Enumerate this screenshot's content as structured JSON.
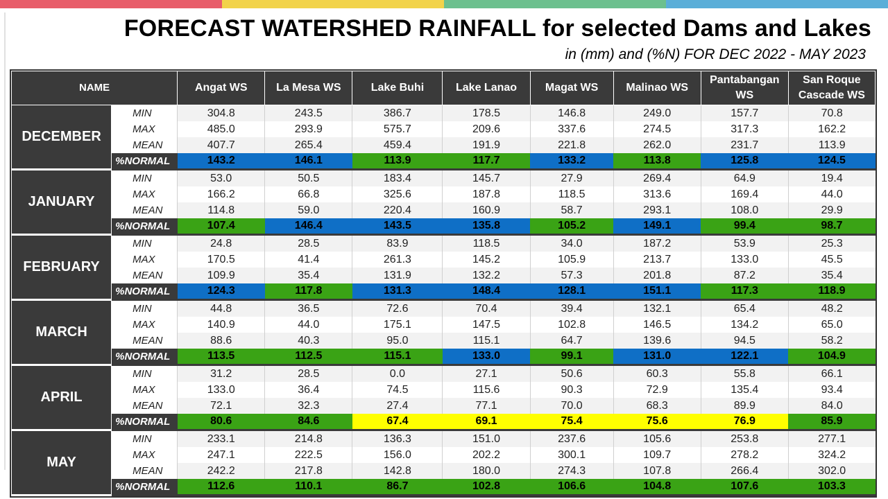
{
  "title": "FORECAST WATERSHED RAINFALL  for selected Dams and Lakes",
  "subtitle": "in (mm) and (%N) FOR DEC 2022 - MAY 2023",
  "colors": {
    "top_bar": [
      "#e85d6a",
      "#f2d34a",
      "#6cc08e",
      "#5aaed8"
    ],
    "header_bg": "#3a3a3a",
    "normal_green": "#3aa315",
    "above_blue": "#0f6fc6",
    "below_yellow": "#ffff00"
  },
  "legend_color_keys": {
    "G": "normal_green",
    "B": "above_blue",
    "Y": "below_yellow"
  },
  "chart_data": {
    "type": "table",
    "name_header": "NAME",
    "columns": [
      "Angat WS",
      "La Mesa WS",
      "Lake Buhi",
      "Lake Lanao",
      "Magat WS",
      "Malinao WS",
      "Pantabangan WS",
      "San Roque Cascade WS"
    ],
    "metric_labels": [
      "MIN",
      "MAX",
      "MEAN",
      "%NORMAL"
    ],
    "months": [
      {
        "name": "DECEMBER",
        "min": [
          "304.8",
          "243.5",
          "386.7",
          "178.5",
          "146.8",
          "249.0",
          "157.7",
          "70.8"
        ],
        "max": [
          "485.0",
          "293.9",
          "575.7",
          "209.6",
          "337.6",
          "274.5",
          "317.3",
          "162.2"
        ],
        "mean": [
          "407.7",
          "265.4",
          "459.4",
          "191.9",
          "221.8",
          "262.0",
          "231.7",
          "113.9"
        ],
        "normal": [
          "143.2",
          "146.1",
          "113.9",
          "117.7",
          "133.2",
          "113.8",
          "125.8",
          "124.5"
        ],
        "normal_colors": [
          "B",
          "B",
          "G",
          "G",
          "B",
          "G",
          "B",
          "B"
        ]
      },
      {
        "name": "JANUARY",
        "min": [
          "53.0",
          "50.5",
          "183.4",
          "145.7",
          "27.9",
          "269.4",
          "64.9",
          "19.4"
        ],
        "max": [
          "166.2",
          "66.8",
          "325.6",
          "187.8",
          "118.5",
          "313.6",
          "169.4",
          "44.0"
        ],
        "mean": [
          "114.8",
          "59.0",
          "220.4",
          "160.9",
          "58.7",
          "293.1",
          "108.0",
          "29.9"
        ],
        "normal": [
          "107.4",
          "146.4",
          "143.5",
          "135.8",
          "105.2",
          "149.1",
          "99.4",
          "98.7"
        ],
        "normal_colors": [
          "G",
          "B",
          "B",
          "B",
          "G",
          "B",
          "G",
          "G"
        ]
      },
      {
        "name": "FEBRUARY",
        "min": [
          "24.8",
          "28.5",
          "83.9",
          "118.5",
          "34.0",
          "187.2",
          "53.9",
          "25.3"
        ],
        "max": [
          "170.5",
          "41.4",
          "261.3",
          "145.2",
          "105.9",
          "213.7",
          "133.0",
          "45.5"
        ],
        "mean": [
          "109.9",
          "35.4",
          "131.9",
          "132.2",
          "57.3",
          "201.8",
          "87.2",
          "35.4"
        ],
        "normal": [
          "124.3",
          "117.8",
          "131.3",
          "148.4",
          "128.1",
          "151.1",
          "117.3",
          "118.9"
        ],
        "normal_colors": [
          "B",
          "G",
          "B",
          "B",
          "B",
          "B",
          "G",
          "G"
        ]
      },
      {
        "name": "MARCH",
        "min": [
          "44.8",
          "36.5",
          "72.6",
          "70.4",
          "39.4",
          "132.1",
          "65.4",
          "48.2"
        ],
        "max": [
          "140.9",
          "44.0",
          "175.1",
          "147.5",
          "102.8",
          "146.5",
          "134.2",
          "65.0"
        ],
        "mean": [
          "88.6",
          "40.3",
          "95.0",
          "115.1",
          "64.7",
          "139.6",
          "94.5",
          "58.2"
        ],
        "normal": [
          "113.5",
          "112.5",
          "115.1",
          "133.0",
          "99.1",
          "131.0",
          "122.1",
          "104.9"
        ],
        "normal_colors": [
          "G",
          "G",
          "G",
          "B",
          "G",
          "B",
          "B",
          "G"
        ]
      },
      {
        "name": "APRIL",
        "min": [
          "31.2",
          "28.5",
          "0.0",
          "27.1",
          "50.6",
          "60.3",
          "55.8",
          "66.1"
        ],
        "max": [
          "133.0",
          "36.4",
          "74.5",
          "115.6",
          "90.3",
          "72.9",
          "135.4",
          "93.4"
        ],
        "mean": [
          "72.1",
          "32.3",
          "27.4",
          "77.1",
          "70.0",
          "68.3",
          "89.9",
          "84.0"
        ],
        "normal": [
          "80.6",
          "84.6",
          "67.4",
          "69.1",
          "75.4",
          "75.6",
          "76.9",
          "85.9"
        ],
        "normal_colors": [
          "G",
          "G",
          "Y",
          "Y",
          "Y",
          "Y",
          "Y",
          "G"
        ]
      },
      {
        "name": "MAY",
        "min": [
          "233.1",
          "214.8",
          "136.3",
          "151.0",
          "237.6",
          "105.6",
          "253.8",
          "277.1"
        ],
        "max": [
          "247.1",
          "222.5",
          "156.0",
          "202.2",
          "300.1",
          "109.7",
          "278.2",
          "324.2"
        ],
        "mean": [
          "242.2",
          "217.8",
          "142.8",
          "180.0",
          "274.3",
          "107.8",
          "266.4",
          "302.0"
        ],
        "normal": [
          "112.6",
          "110.1",
          "86.7",
          "102.8",
          "106.6",
          "104.8",
          "107.6",
          "103.3"
        ],
        "normal_colors": [
          "G",
          "G",
          "G",
          "G",
          "G",
          "G",
          "G",
          "G"
        ]
      }
    ]
  }
}
